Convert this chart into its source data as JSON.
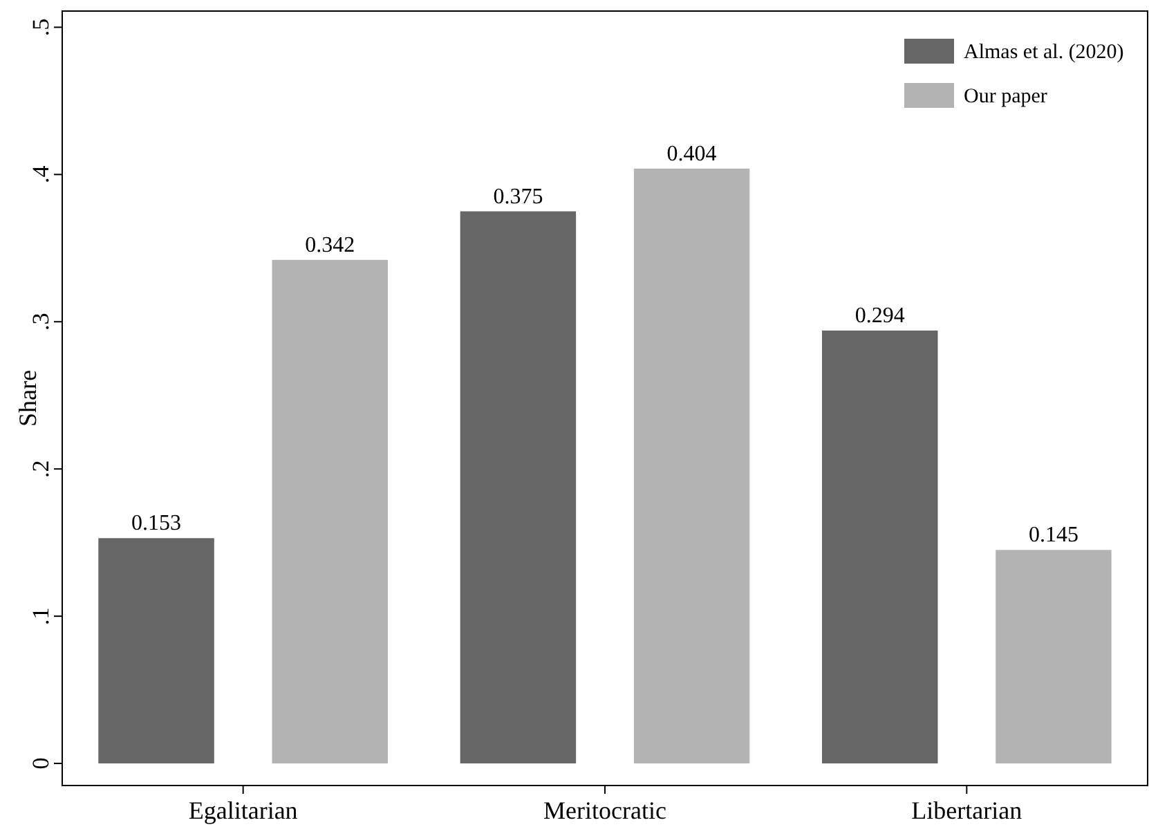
{
  "chart_data": {
    "type": "bar",
    "ylabel": "Share",
    "categories": [
      "Egalitarian",
      "Meritocratic",
      "Libertarian"
    ],
    "series": [
      {
        "name": "Almas et al. (2020)",
        "color": "#666666",
        "values": [
          0.153,
          0.375,
          0.294
        ]
      },
      {
        "name": "Our paper",
        "color": "#b3b3b3",
        "values": [
          0.342,
          0.404,
          0.145
        ]
      }
    ],
    "ylim": [
      -0.015,
      0.511
    ],
    "yticks": [
      0,
      {
        "value": 0.1,
        "label": ".1"
      },
      {
        "value": 0.2,
        "label": ".2"
      },
      {
        "value": 0.3,
        "label": ".3"
      },
      {
        "value": 0.4,
        "label": ".4"
      },
      {
        "value": 0.5,
        "label": ".5"
      }
    ],
    "data_labels": true,
    "legend": "top right",
    "grid": false
  }
}
